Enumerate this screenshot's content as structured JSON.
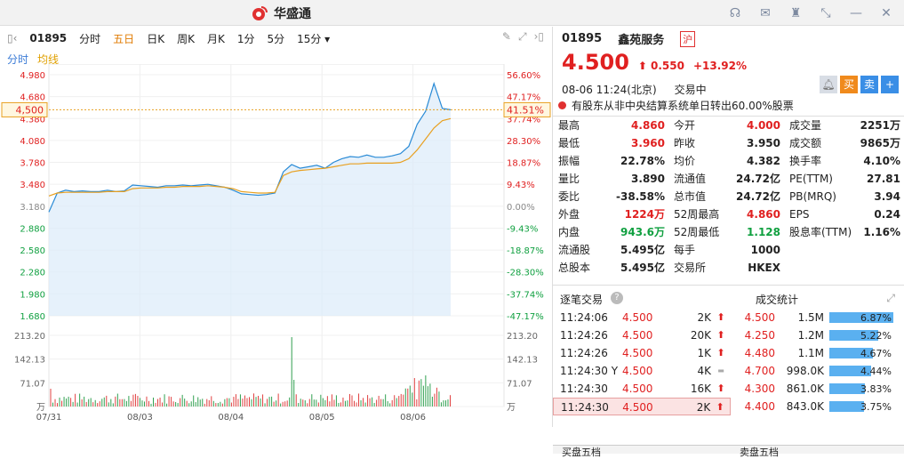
{
  "app": {
    "brand": "华盛通"
  },
  "toolbar": {
    "code": "01895",
    "items": [
      "分时",
      "五日",
      "日K",
      "周K",
      "月K",
      "1分",
      "5分",
      "15分 ▾"
    ],
    "active": 1
  },
  "subbar": {
    "a": "分时",
    "b": "均线"
  },
  "chart_data": {
    "type": "line",
    "title": "",
    "price_axis": [
      "4.980",
      "4.680",
      "4.380",
      "4.080",
      "3.780",
      "3.480",
      "3.180",
      "2.880",
      "2.580",
      "2.280",
      "1.980",
      "1.680"
    ],
    "pct_axis": [
      "56.60%",
      "47.17%",
      "37.74%",
      "28.30%",
      "18.87%",
      "9.43%",
      "0.00%",
      "-9.43%",
      "-18.87%",
      "-28.30%",
      "-37.74%",
      "-47.17%"
    ],
    "vol_axis": [
      "213.20",
      "142.13",
      "71.07",
      "万"
    ],
    "dates": [
      "07/31",
      "08/03",
      "08/04",
      "08/05",
      "08/06"
    ],
    "current_price_label": "4,500",
    "current_pct_label": "41.51%",
    "prev_close": 3.18,
    "ylim": [
      1.68,
      4.98
    ],
    "price_series": [
      3.1,
      3.36,
      3.4,
      3.38,
      3.39,
      3.38,
      3.38,
      3.4,
      3.38,
      3.39,
      3.47,
      3.46,
      3.45,
      3.44,
      3.46,
      3.46,
      3.47,
      3.46,
      3.47,
      3.48,
      3.46,
      3.44,
      3.4,
      3.35,
      3.34,
      3.33,
      3.34,
      3.36,
      3.65,
      3.75,
      3.7,
      3.72,
      3.74,
      3.7,
      3.78,
      3.83,
      3.86,
      3.85,
      3.88,
      3.85,
      3.85,
      3.87,
      3.9,
      4.0,
      4.3,
      4.48,
      4.86,
      4.52,
      4.5
    ],
    "avg_series": [
      3.32,
      3.36,
      3.37,
      3.37,
      3.37,
      3.37,
      3.37,
      3.38,
      3.38,
      3.38,
      3.42,
      3.43,
      3.43,
      3.43,
      3.44,
      3.44,
      3.45,
      3.45,
      3.45,
      3.46,
      3.45,
      3.44,
      3.42,
      3.38,
      3.37,
      3.36,
      3.36,
      3.37,
      3.6,
      3.65,
      3.67,
      3.68,
      3.69,
      3.7,
      3.72,
      3.74,
      3.76,
      3.76,
      3.77,
      3.77,
      3.77,
      3.77,
      3.78,
      3.83,
      3.95,
      4.1,
      4.25,
      4.35,
      4.38
    ]
  },
  "quote": {
    "code": "01895",
    "name": "鑫苑服务",
    "tag": "沪",
    "price": "4.500",
    "arrow": "⬆",
    "chg": "0.550",
    "pct": "+13.92%",
    "date": "08-06",
    "time": "11:24(北京)",
    "status": "交易中",
    "btn_buy": "买",
    "btn_sell": "卖",
    "btn_add": "+",
    "notice": "有股东从非中央结算系统单日转出60.00%股票"
  },
  "stats": [
    [
      [
        "最高",
        "4.860",
        "red"
      ],
      [
        "今开",
        "4.000",
        "red"
      ],
      [
        "成交量",
        "2251万",
        ""
      ]
    ],
    [
      [
        "最低",
        "3.960",
        "red"
      ],
      [
        "昨收",
        "3.950",
        ""
      ],
      [
        "成交额",
        "9865万",
        ""
      ]
    ],
    [
      [
        "振幅",
        "22.78%",
        ""
      ],
      [
        "均价",
        "4.382",
        ""
      ],
      [
        "换手率",
        "4.10%",
        ""
      ]
    ],
    [
      [
        "量比",
        "3.890",
        ""
      ],
      [
        "流通值",
        "24.72亿",
        ""
      ],
      [
        "PE(TTM)",
        "27.81",
        ""
      ]
    ],
    [
      [
        "委比",
        "-38.58%",
        ""
      ],
      [
        "总市值",
        "24.72亿",
        ""
      ],
      [
        "PB(MRQ)",
        "3.94",
        ""
      ]
    ],
    [
      [
        "外盘",
        "1224万",
        "red"
      ],
      [
        "52周最高",
        "4.860",
        "red"
      ],
      [
        "EPS",
        "0.24",
        ""
      ]
    ],
    [
      [
        "内盘",
        "943.6万",
        "green"
      ],
      [
        "52周最低",
        "1.128",
        "green"
      ],
      [
        "股息率(TTM)",
        "1.16%",
        ""
      ]
    ],
    [
      [
        "流通股",
        "5.495亿",
        ""
      ],
      [
        "每手",
        "1000",
        ""
      ],
      [
        "",
        "",
        " "
      ]
    ],
    [
      [
        "总股本",
        "5.495亿",
        ""
      ],
      [
        "交易所",
        "HKEX",
        ""
      ],
      [
        "",
        "",
        ""
      ]
    ]
  ],
  "tabs": {
    "a": "逐笔交易",
    "b": "成交统计"
  },
  "trades": [
    [
      "11:24:06",
      "4.500",
      "2K",
      "up"
    ],
    [
      "11:24:26",
      "4.500",
      "20K",
      "up"
    ],
    [
      "11:24:26",
      "4.500",
      "1K",
      "up"
    ],
    [
      "11:24:30 Y",
      "4.500",
      "4K",
      "flat"
    ],
    [
      "11:24:30",
      "4.500",
      "16K",
      "up"
    ],
    [
      "11:24:30",
      "4.500",
      "2K",
      "up"
    ]
  ],
  "vstats": [
    [
      "4.500",
      "1.5M",
      "6.87%",
      6.87
    ],
    [
      "4.250",
      "1.2M",
      "5.22%",
      5.22
    ],
    [
      "4.480",
      "1.1M",
      "4.67%",
      4.67
    ],
    [
      "4.700",
      "998.0K",
      "4.44%",
      4.44
    ],
    [
      "4.300",
      "861.0K",
      "3.83%",
      3.83
    ],
    [
      "4.400",
      "843.0K",
      "3.75%",
      3.75
    ]
  ],
  "bottom": {
    "a": "买盘五档",
    "b": "卖盘五档"
  }
}
